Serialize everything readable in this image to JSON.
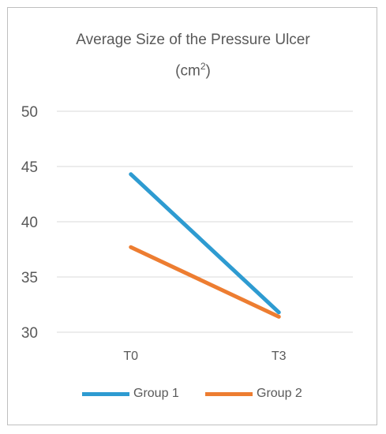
{
  "chart_data": {
    "type": "line",
    "title_line1": "Average Size of the Pressure Ulcer",
    "title_line2_prefix": "(cm",
    "title_line2_sup": "2",
    "title_line2_suffix": ")",
    "categories": [
      "T0",
      "T3"
    ],
    "yticks": [
      "30",
      "35",
      "40",
      "45",
      "50"
    ],
    "ylim": [
      30,
      50
    ],
    "grid": true,
    "legend_position": "bottom",
    "series": [
      {
        "name": "Group 1",
        "values": [
          44.3,
          31.8
        ],
        "color": "#2e9bd1"
      },
      {
        "name": "Group 2",
        "values": [
          37.7,
          31.4
        ],
        "color": "#ed7d31"
      }
    ]
  }
}
